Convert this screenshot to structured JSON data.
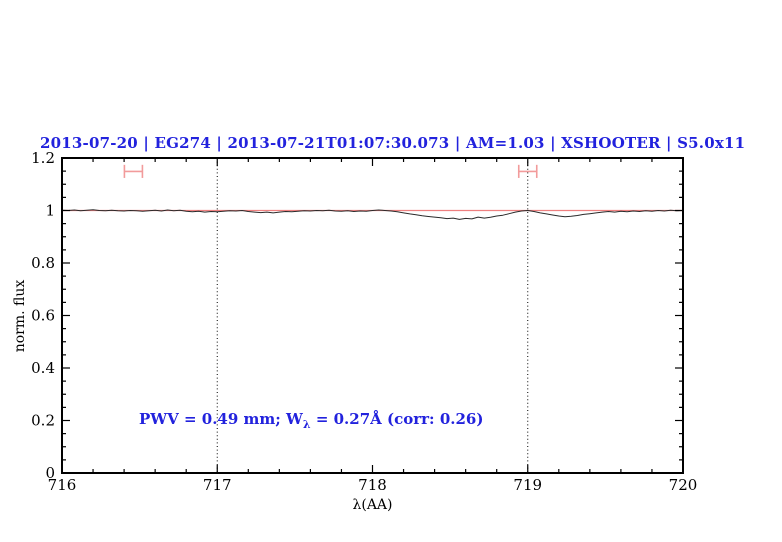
{
  "chart_data": {
    "type": "line",
    "title": "2013-07-20 | EG274 | 2013-07-21T01:07:30.073 | AM=1.03 | XSHOOTER | S5.0x11",
    "xlabel": "λ(AA)",
    "ylabel": "norm. flux",
    "xlim": [
      716,
      720
    ],
    "ylim": [
      0,
      1.2
    ],
    "grid": false,
    "legend": false,
    "x_ticks": {
      "values": [
        716,
        717,
        718,
        719,
        720
      ],
      "labels": [
        "716",
        "717",
        "718",
        "719",
        "720"
      ],
      "minor_step": 0.2
    },
    "y_ticks": {
      "values": [
        0,
        0.2,
        0.4,
        0.6,
        0.8,
        1,
        1.2
      ],
      "labels": [
        "0",
        "0.2",
        "0.4",
        "0.6",
        "0.8",
        "1",
        "1.2"
      ],
      "minor_step": 0.05
    },
    "guide_lines_x": [
      717,
      719
    ],
    "model_line": {
      "y": 1.0
    },
    "telluric_markers": [
      {
        "x": 716.46,
        "half_width": 0.058,
        "y": 1.149,
        "cap_half_height": 0.025
      },
      {
        "x": 719.0,
        "half_width": 0.058,
        "y": 1.149,
        "cap_half_height": 0.025
      }
    ],
    "series": [
      {
        "name": "observed normalized spectrum",
        "x_start": 716.0,
        "x_step": 0.04,
        "values": [
          1.001,
          1.0,
          1.002,
          0.999,
          1.001,
          1.003,
          1.0,
          0.999,
          1.001,
          0.999,
          0.998,
          1.0,
          0.999,
          0.997,
          0.999,
          1.001,
          0.998,
          1.002,
          0.999,
          1.001,
          0.997,
          0.995,
          0.997,
          0.994,
          0.996,
          0.995,
          0.997,
          0.999,
          0.998,
          1.0,
          0.996,
          0.994,
          0.992,
          0.994,
          0.991,
          0.994,
          0.996,
          0.995,
          0.997,
          0.999,
          0.998,
          1.0,
          0.999,
          1.001,
          0.998,
          0.997,
          0.999,
          0.996,
          0.998,
          0.997,
          1.0,
          1.002,
          1.0,
          0.998,
          0.995,
          0.991,
          0.987,
          0.984,
          0.98,
          0.977,
          0.975,
          0.972,
          0.969,
          0.971,
          0.966,
          0.97,
          0.968,
          0.975,
          0.971,
          0.974,
          0.979,
          0.982,
          0.988,
          0.994,
          0.998,
          1.0,
          0.996,
          0.991,
          0.987,
          0.983,
          0.979,
          0.976,
          0.978,
          0.981,
          0.985,
          0.988,
          0.991,
          0.994,
          0.996,
          0.994,
          0.997,
          0.995,
          0.998,
          0.996,
          0.999,
          0.997,
          1.0,
          0.998,
          1.001,
          0.999,
          1.0
        ]
      }
    ],
    "annotation": {
      "prefix": "PWV = 0.49 mm; W",
      "subscript": "λ",
      "suffix": " = 0.27Å (corr: 0.26)"
    },
    "colors": {
      "title": "#2222dd",
      "annotation": "#2222dd",
      "model_line": "#ee8080",
      "markers": "#f29b9b",
      "spectrum": "#2a2a2a",
      "axis": "#000000",
      "guides": "#000000"
    }
  }
}
